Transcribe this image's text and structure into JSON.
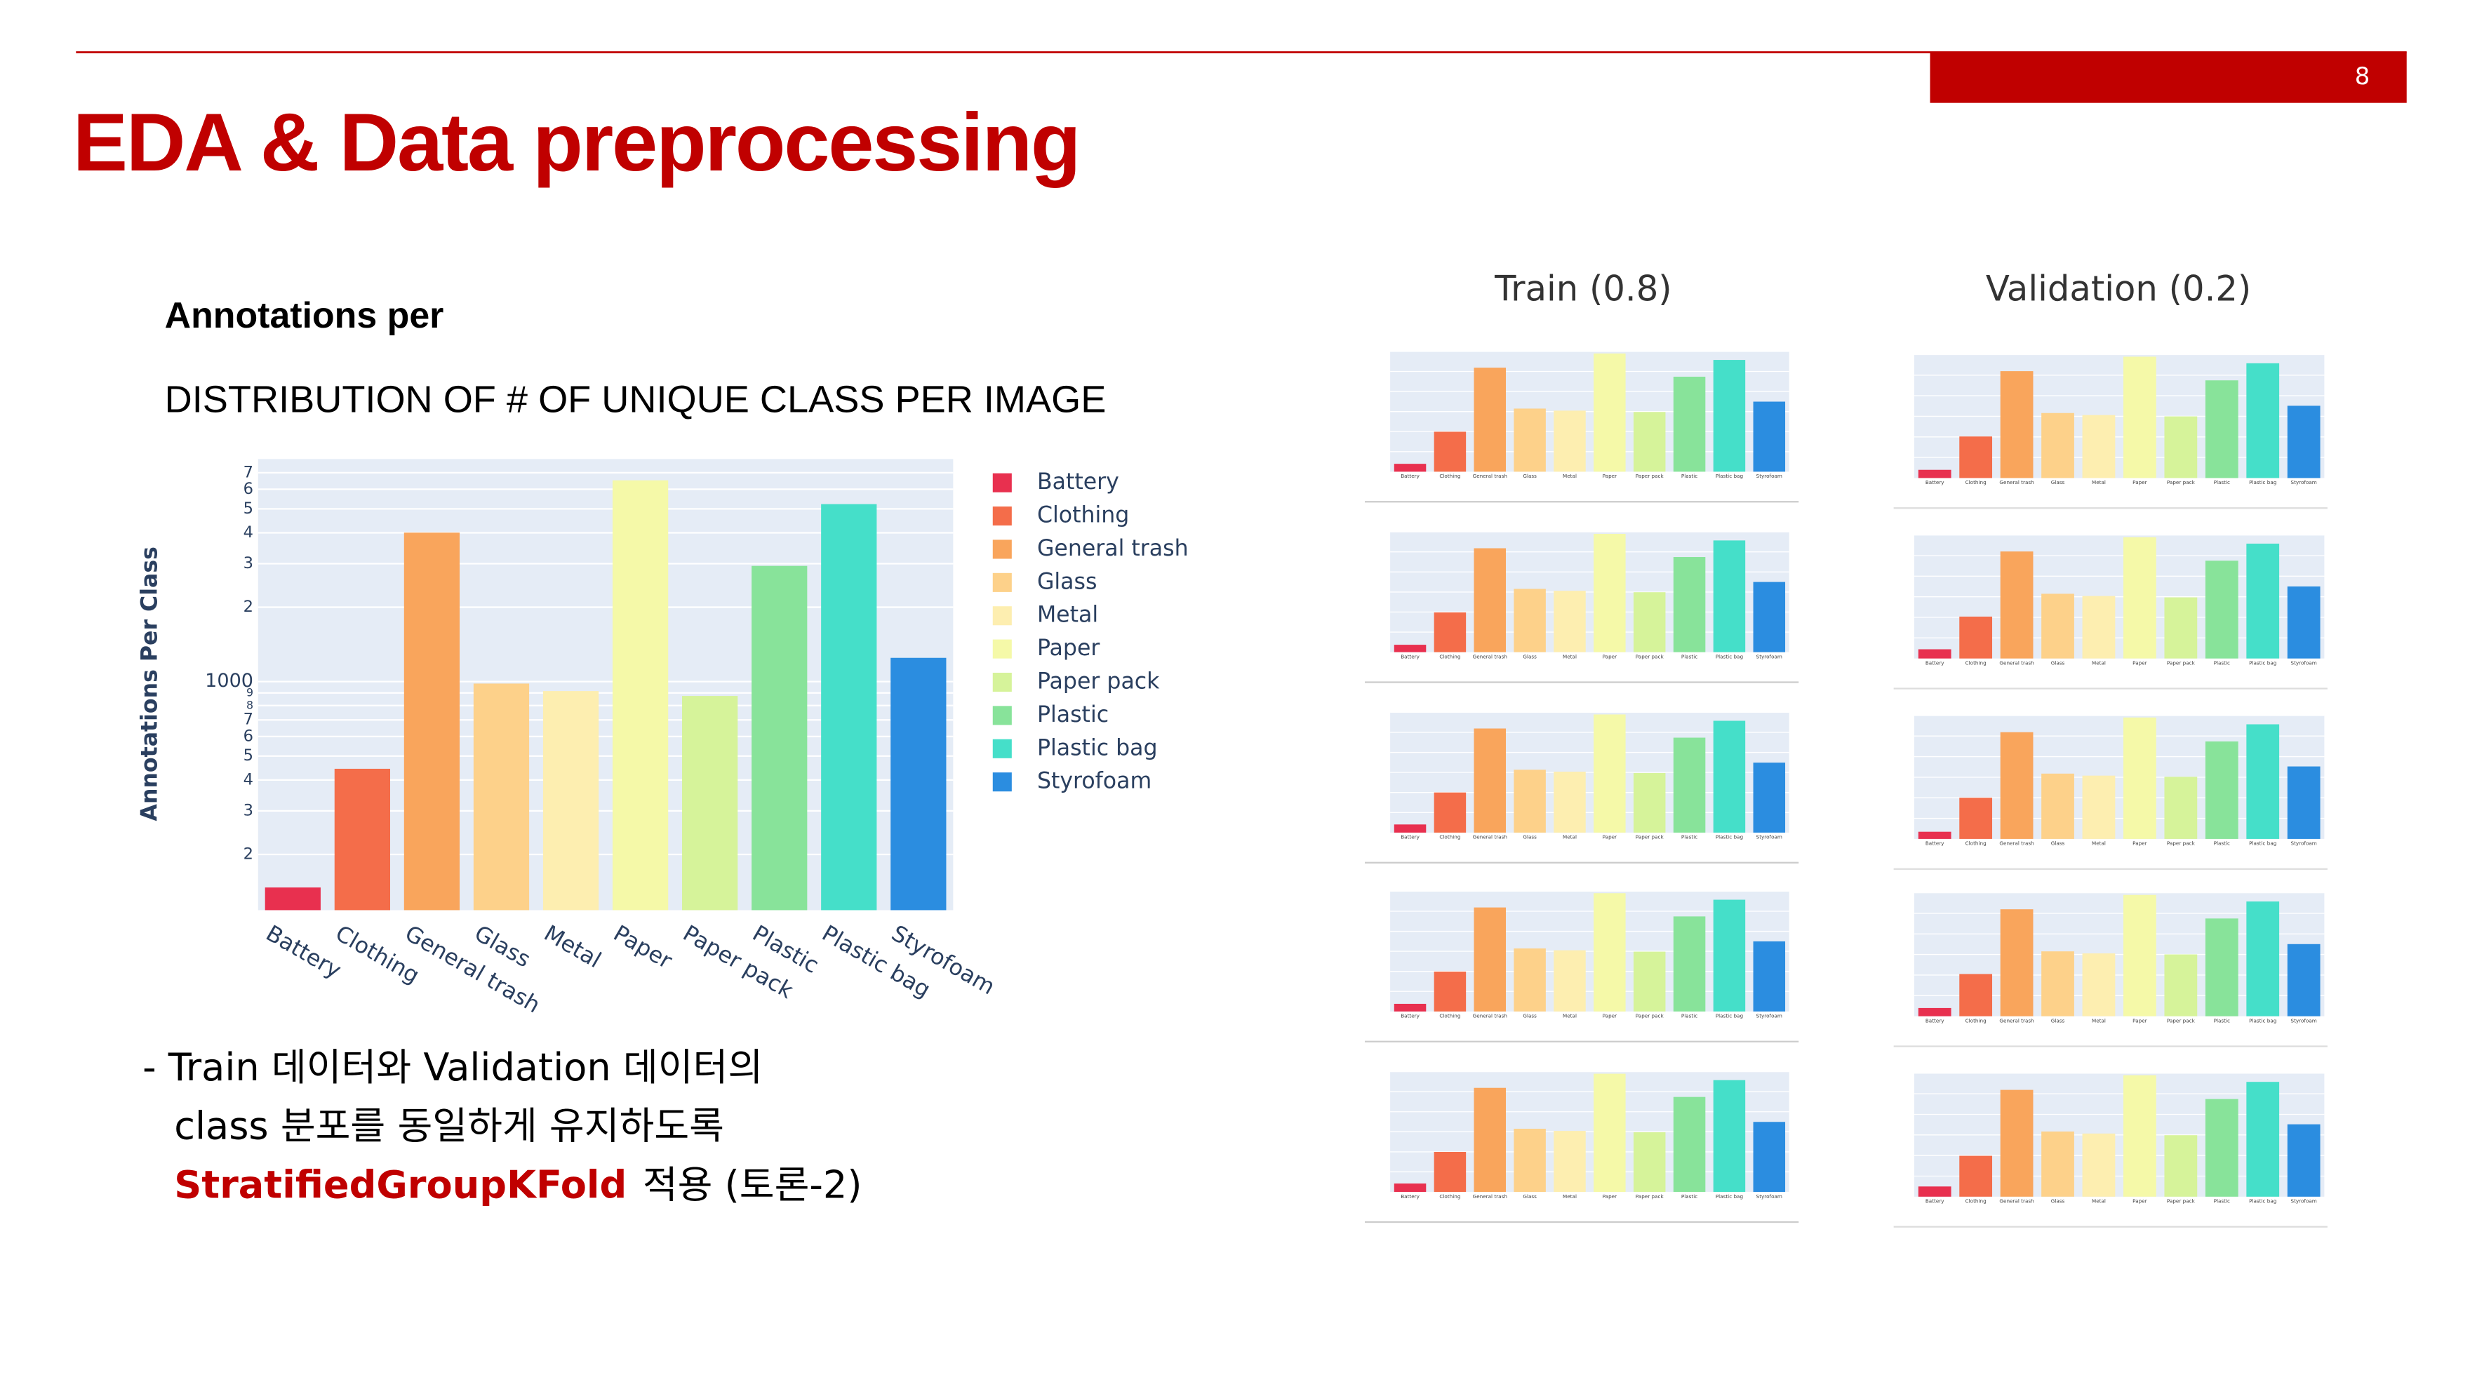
{
  "slide": {
    "title": "EDA & Data preprocessing",
    "page_number": "8",
    "heading": "Annotations per",
    "subheading": "DISTRIBUTION OF # OF UNIQUE CLASS PER IMAGE",
    "train_label": "Train (0.8)",
    "validation_label": "Validation (0.2)",
    "note": {
      "line1": "- Train 데이터와 Validation 데이터의",
      "line2": "class 분포를 동일하게 유지하도록",
      "highlight": "StratifiedGroupKFold",
      "line3_rest": "적용 (토론-2)"
    }
  },
  "chart_data": [
    {
      "type": "bar",
      "ylabel": "Annotations Per Class",
      "log_scale": true,
      "grid": true,
      "categories": [
        "Battery",
        "Clothing",
        "General trash",
        "Glass",
        "Metal",
        "Paper",
        "Paper pack",
        "Plastic",
        "Plastic bag",
        "Styrofoam"
      ],
      "colors": [
        "#e8304f",
        "#f46d4a",
        "#f9a55c",
        "#fdd18a",
        "#fdeeb0",
        "#f5f9a8",
        "#d6f39a",
        "#88e39a",
        "#45dfc9",
        "#2b8de0"
      ],
      "values": [
        147,
        444,
        4006,
        982,
        916,
        6520,
        875,
        2938,
        5224,
        1248
      ],
      "ylim": [
        119,
        7950
      ],
      "yticks": [
        {
          "value": 200,
          "label": "2"
        },
        {
          "value": 300,
          "label": "3"
        },
        {
          "value": 400,
          "label": "4"
        },
        {
          "value": 500,
          "label": "5"
        },
        {
          "value": 600,
          "label": "6"
        },
        {
          "value": 700,
          "label": "7"
        },
        {
          "value": 800,
          "label": "8"
        },
        {
          "value": 900,
          "label": "9"
        },
        1000,
        {
          "value": 2000,
          "label": "2"
        },
        {
          "value": 3000,
          "label": "3"
        },
        {
          "value": 4000,
          "label": "4"
        },
        {
          "value": 5000,
          "label": "5"
        },
        {
          "value": 6000,
          "label": "6"
        },
        {
          "value": 7000,
          "label": "7"
        }
      ],
      "legend": "right"
    },
    {
      "type": "bar",
      "log_scale": true,
      "values": [
        118,
        355,
        3205,
        786,
        733,
        5216,
        700,
        2350,
        4179,
        998
      ],
      "ylim": [
        90,
        5600
      ]
    },
    {
      "type": "bar",
      "log_scale": true,
      "values": [
        116,
        352,
        3190,
        790,
        740,
        5230,
        705,
        2360,
        4170,
        1002
      ],
      "ylim": [
        90,
        5600
      ]
    },
    {
      "type": "bar",
      "log_scale": true,
      "values": [
        119,
        357,
        3210,
        780,
        730,
        5200,
        695,
        2345,
        4185,
        995
      ],
      "ylim": [
        90,
        5600
      ]
    },
    {
      "type": "bar",
      "log_scale": true,
      "values": [
        117,
        354,
        3200,
        784,
        736,
        5220,
        702,
        2352,
        4176,
        1000
      ],
      "ylim": [
        90,
        5600
      ]
    },
    {
      "type": "bar",
      "log_scale": true,
      "values": [
        120,
        356,
        3208,
        788,
        731,
        5210,
        698,
        2348,
        4182,
        996
      ],
      "ylim": [
        90,
        5600
      ]
    },
    {
      "type": "bar",
      "log_scale": true,
      "values": [
        29,
        89,
        801,
        196,
        183,
        1304,
        175,
        588,
        1045,
        250
      ],
      "ylim": [
        22,
        1400
      ]
    },
    {
      "type": "bar",
      "log_scale": true,
      "values": [
        30,
        90,
        805,
        194,
        180,
        1300,
        172,
        590,
        1048,
        248
      ],
      "ylim": [
        22,
        1400
      ]
    },
    {
      "type": "bar",
      "log_scale": true,
      "values": [
        28,
        88,
        798,
        198,
        185,
        1308,
        178,
        585,
        1040,
        252
      ],
      "ylim": [
        22,
        1400
      ]
    },
    {
      "type": "bar",
      "log_scale": true,
      "values": [
        29,
        91,
        803,
        195,
        182,
        1302,
        176,
        589,
        1044,
        249
      ],
      "ylim": [
        22,
        1400
      ]
    },
    {
      "type": "bar",
      "log_scale": true,
      "values": [
        31,
        87,
        799,
        197,
        184,
        1306,
        174,
        587,
        1046,
        251
      ],
      "ylim": [
        22,
        1400
      ]
    }
  ]
}
